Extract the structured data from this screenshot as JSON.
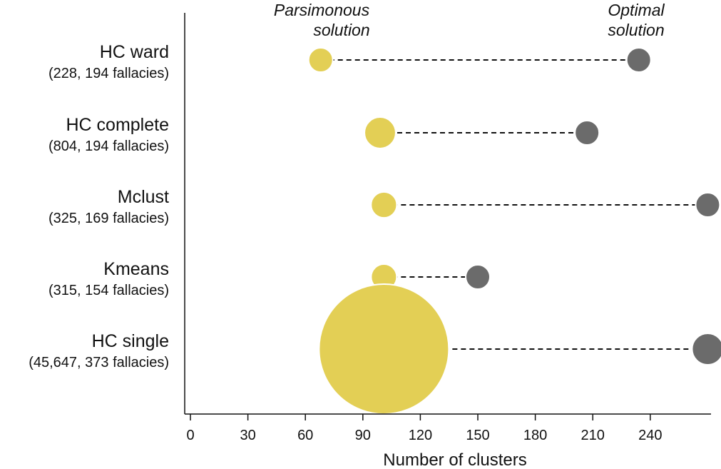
{
  "chart_data": {
    "type": "scatter",
    "xlabel": "Number of clusters",
    "xlim": [
      -3,
      272
    ],
    "xticks": [
      0,
      30,
      60,
      90,
      120,
      150,
      180,
      210,
      240
    ],
    "colors": {
      "parsimonious": "#e3cf55",
      "optimal": "#6b6b6b",
      "axis": "#111111"
    },
    "legend": {
      "parsimonious": [
        "Parsimonous",
        "solution"
      ],
      "optimal": [
        "Optimal",
        "solution"
      ]
    },
    "categories": [
      {
        "name": "HC ward",
        "detail": "(228, 194 fallacies)",
        "parsimonious": 68,
        "optimal": 234,
        "size": 228
      },
      {
        "name": "HC complete",
        "detail": "(804, 194 fallacies)",
        "parsimonious": 99,
        "optimal": 207,
        "size": 804
      },
      {
        "name": "Mclust",
        "detail": "(325, 169 fallacies)",
        "parsimonious": 101,
        "optimal": 270,
        "size": 325
      },
      {
        "name": "Kmeans",
        "detail": "(315, 154 fallacies)",
        "parsimonious": 101,
        "optimal": 150,
        "size": 315
      },
      {
        "name": "HC single",
        "detail": "(45,647, 373 fallacies)",
        "parsimonious": 101,
        "optimal": 270,
        "size": 45647
      }
    ]
  }
}
